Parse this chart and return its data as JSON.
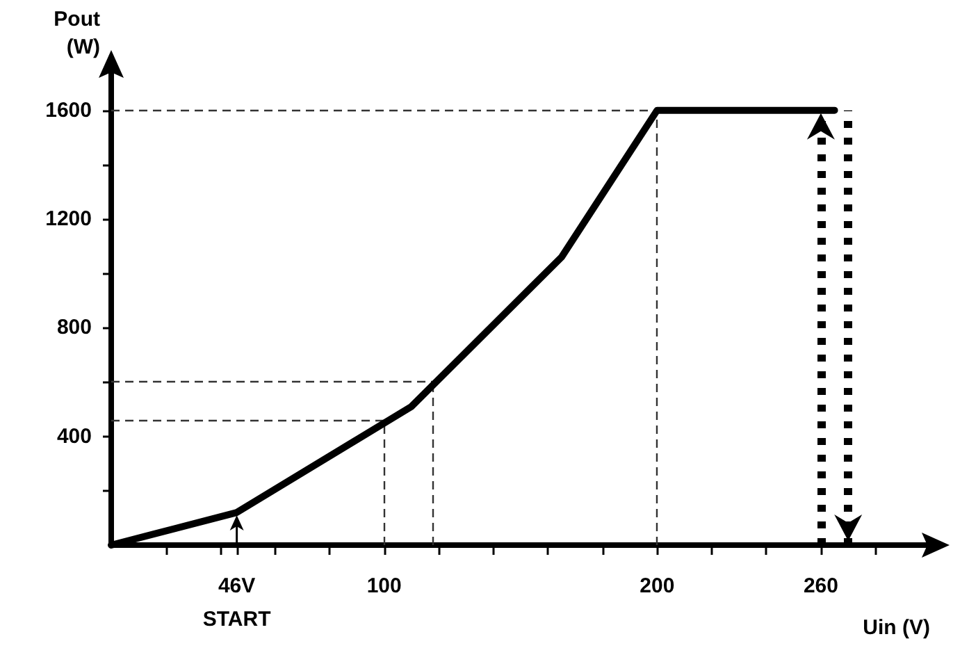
{
  "chart_data": {
    "type": "line",
    "xlabel": "Uin (V)",
    "ylabel": "Pout (W)",
    "x": [
      0,
      46,
      110,
      165,
      200,
      265
    ],
    "series": [
      {
        "color": "#000000",
        "values": [
          0,
          120,
          510,
          1060,
          1600,
          1600
        ]
      }
    ],
    "xlim": [
      0,
      300
    ],
    "xticks": [
      {
        "value": 20,
        "label": null
      },
      {
        "value": 40,
        "label": null
      },
      {
        "value": 46,
        "label": "46V"
      },
      {
        "value": 60,
        "label": null
      },
      {
        "value": 80,
        "label": null
      },
      100,
      {
        "value": 120,
        "label": null
      },
      {
        "value": 140,
        "label": null
      },
      {
        "value": 160,
        "label": null
      },
      {
        "value": 180,
        "label": null
      },
      200,
      {
        "value": 220,
        "label": null
      },
      {
        "value": 240,
        "label": null
      },
      260,
      {
        "value": 280,
        "label": null
      }
    ],
    "ylim": [
      0,
      1750
    ],
    "yticks": [
      {
        "value": 200,
        "label": null
      },
      400,
      {
        "value": 600,
        "label": null
      },
      800,
      {
        "value": 1000,
        "label": null
      },
      1200,
      {
        "value": 1400,
        "label": null
      },
      1600
    ],
    "ref_lines": [
      {
        "axis": "y",
        "value": 1600,
        "line_style": "dashed",
        "color": "#333333"
      },
      {
        "axis": "y",
        "value": 600,
        "line_style": "dashed",
        "color": "#333333"
      },
      {
        "axis": "y",
        "value": 460,
        "line_style": "dashed",
        "color": "#333333"
      },
      {
        "axis": "x",
        "value": 100,
        "line_style": "dashed",
        "color": "#333333"
      },
      {
        "axis": "x",
        "value": 118,
        "line_style": "dashed",
        "color": "#333333"
      },
      {
        "axis": "x",
        "value": 200,
        "line_style": "dashed",
        "color": "#333333"
      },
      {
        "axis": "x",
        "value": 260,
        "line_style": "dotted",
        "color": "#000000"
      },
      {
        "axis": "x",
        "value": 270,
        "line_style": "dotted",
        "color": "#000000"
      }
    ],
    "annotations": [
      "START"
    ],
    "grid": false,
    "marker": "none",
    "line_style": "solid"
  }
}
